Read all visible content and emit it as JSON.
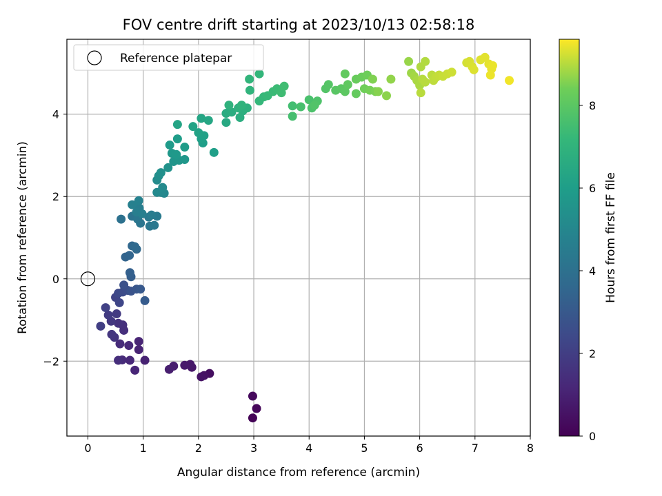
{
  "chart_data": {
    "type": "scatter",
    "title": "FOV centre drift starting at 2023/10/13 02:58:18",
    "xlabel": "Angular distance from reference (arcmin)",
    "ylabel": "Rotation from reference (arcmin)",
    "colorbar_label": "Hours from first FF file",
    "colormap": "viridis",
    "xlim": [
      -0.38,
      8.0
    ],
    "ylim": [
      -3.82,
      5.82
    ],
    "xticks": [
      0,
      1,
      2,
      3,
      4,
      5,
      6,
      7,
      8
    ],
    "xtick_labels": [
      "0",
      "1",
      "2",
      "3",
      "4",
      "5",
      "6",
      "7",
      "8"
    ],
    "yticks": [
      -2,
      0,
      2,
      4
    ],
    "ytick_labels": [
      "−2",
      "0",
      "2",
      "4"
    ],
    "colorbar_range": [
      0,
      9.6
    ],
    "colorbar_ticks": [
      0,
      2,
      4,
      6,
      8
    ],
    "colorbar_tick_labels": [
      "0",
      "2",
      "4",
      "6",
      "8"
    ],
    "grid": true,
    "legend": {
      "location": "top-left",
      "entries": [
        "Reference platepar"
      ]
    },
    "reference_point": {
      "x": 0,
      "y": 0
    },
    "points": [
      {
        "x": 2.98,
        "y": -3.38,
        "c": 0.05
      },
      {
        "x": 3.05,
        "y": -3.15,
        "c": 0.15
      },
      {
        "x": 2.98,
        "y": -2.85,
        "c": 0.25
      },
      {
        "x": 2.2,
        "y": -2.3,
        "c": 0.4
      },
      {
        "x": 2.1,
        "y": -2.35,
        "c": 0.5
      },
      {
        "x": 2.05,
        "y": -2.38,
        "c": 0.55
      },
      {
        "x": 1.88,
        "y": -2.15,
        "c": 0.65
      },
      {
        "x": 1.85,
        "y": -2.08,
        "c": 0.7
      },
      {
        "x": 1.75,
        "y": -2.1,
        "c": 0.75
      },
      {
        "x": 1.55,
        "y": -2.12,
        "c": 0.85
      },
      {
        "x": 1.47,
        "y": -2.2,
        "c": 0.9
      },
      {
        "x": 1.03,
        "y": -1.98,
        "c": 1.0
      },
      {
        "x": 0.92,
        "y": -1.72,
        "c": 1.05
      },
      {
        "x": 0.92,
        "y": -1.52,
        "c": 1.1
      },
      {
        "x": 0.85,
        "y": -2.22,
        "c": 1.15
      },
      {
        "x": 0.76,
        "y": -1.98,
        "c": 1.2
      },
      {
        "x": 0.74,
        "y": -1.62,
        "c": 1.25
      },
      {
        "x": 0.62,
        "y": -1.97,
        "c": 1.3
      },
      {
        "x": 0.58,
        "y": -1.58,
        "c": 1.35
      },
      {
        "x": 0.55,
        "y": -1.98,
        "c": 1.4
      },
      {
        "x": 0.65,
        "y": -1.25,
        "c": 1.45
      },
      {
        "x": 0.63,
        "y": -1.12,
        "c": 1.5
      },
      {
        "x": 0.55,
        "y": -1.08,
        "c": 1.55
      },
      {
        "x": 0.48,
        "y": -1.42,
        "c": 1.65
      },
      {
        "x": 0.43,
        "y": -1.35,
        "c": 1.7
      },
      {
        "x": 0.42,
        "y": -1.03,
        "c": 1.75
      },
      {
        "x": 0.52,
        "y": -0.85,
        "c": 1.85
      },
      {
        "x": 0.37,
        "y": -0.88,
        "c": 1.9
      },
      {
        "x": 0.23,
        "y": -1.15,
        "c": 2.0
      },
      {
        "x": 0.32,
        "y": -0.7,
        "c": 2.1
      },
      {
        "x": 0.5,
        "y": -0.45,
        "c": 2.2
      },
      {
        "x": 0.57,
        "y": -0.58,
        "c": 2.3
      },
      {
        "x": 0.55,
        "y": -0.35,
        "c": 2.4
      },
      {
        "x": 0.63,
        "y": -0.32,
        "c": 2.5
      },
      {
        "x": 0.72,
        "y": -0.28,
        "c": 2.6
      },
      {
        "x": 0.65,
        "y": -0.15,
        "c": 2.7
      },
      {
        "x": 0.78,
        "y": -0.3,
        "c": 2.8
      },
      {
        "x": 0.88,
        "y": -0.25,
        "c": 2.9
      },
      {
        "x": 0.95,
        "y": -0.25,
        "c": 3.0
      },
      {
        "x": 1.03,
        "y": -0.53,
        "c": 3.1
      },
      {
        "x": 0.78,
        "y": 0.05,
        "c": 3.2
      },
      {
        "x": 0.76,
        "y": 0.15,
        "c": 3.3
      },
      {
        "x": 0.68,
        "y": 0.53,
        "c": 3.45
      },
      {
        "x": 0.75,
        "y": 0.57,
        "c": 3.5
      },
      {
        "x": 0.8,
        "y": 0.8,
        "c": 3.6
      },
      {
        "x": 0.88,
        "y": 0.72,
        "c": 3.65
      },
      {
        "x": 0.85,
        "y": 0.78,
        "c": 3.7
      },
      {
        "x": 0.6,
        "y": 1.45,
        "c": 4.0
      },
      {
        "x": 0.8,
        "y": 1.52,
        "c": 4.1
      },
      {
        "x": 0.95,
        "y": 1.35,
        "c": 4.2
      },
      {
        "x": 0.9,
        "y": 1.45,
        "c": 4.25
      },
      {
        "x": 1.12,
        "y": 1.28,
        "c": 4.3
      },
      {
        "x": 1.2,
        "y": 1.3,
        "c": 4.35
      },
      {
        "x": 1.1,
        "y": 1.5,
        "c": 4.4
      },
      {
        "x": 1.25,
        "y": 1.52,
        "c": 4.45
      },
      {
        "x": 1.15,
        "y": 1.55,
        "c": 4.5
      },
      {
        "x": 0.93,
        "y": 1.72,
        "c": 4.55
      },
      {
        "x": 0.88,
        "y": 1.62,
        "c": 4.6
      },
      {
        "x": 0.98,
        "y": 1.58,
        "c": 4.65
      },
      {
        "x": 0.8,
        "y": 1.8,
        "c": 4.7
      },
      {
        "x": 0.92,
        "y": 1.9,
        "c": 4.75
      },
      {
        "x": 1.38,
        "y": 2.08,
        "c": 5.0
      },
      {
        "x": 1.32,
        "y": 2.1,
        "c": 5.05
      },
      {
        "x": 1.25,
        "y": 2.1,
        "c": 5.1
      },
      {
        "x": 1.35,
        "y": 2.22,
        "c": 5.15
      },
      {
        "x": 1.25,
        "y": 2.4,
        "c": 5.2
      },
      {
        "x": 1.28,
        "y": 2.5,
        "c": 5.3
      },
      {
        "x": 1.32,
        "y": 2.58,
        "c": 5.4
      },
      {
        "x": 1.45,
        "y": 2.7,
        "c": 5.5
      },
      {
        "x": 1.55,
        "y": 2.85,
        "c": 5.6
      },
      {
        "x": 1.65,
        "y": 2.88,
        "c": 5.65
      },
      {
        "x": 1.75,
        "y": 2.9,
        "c": 5.7
      },
      {
        "x": 1.52,
        "y": 3.05,
        "c": 5.75
      },
      {
        "x": 1.6,
        "y": 3.02,
        "c": 5.8
      },
      {
        "x": 1.48,
        "y": 3.25,
        "c": 5.85
      },
      {
        "x": 1.75,
        "y": 3.2,
        "c": 5.9
      },
      {
        "x": 1.62,
        "y": 3.4,
        "c": 5.95
      },
      {
        "x": 2.08,
        "y": 3.3,
        "c": 6.0
      },
      {
        "x": 2.28,
        "y": 3.07,
        "c": 6.05
      },
      {
        "x": 2.05,
        "y": 3.4,
        "c": 6.1
      },
      {
        "x": 2.1,
        "y": 3.48,
        "c": 6.15
      },
      {
        "x": 2.0,
        "y": 3.55,
        "c": 6.2
      },
      {
        "x": 1.9,
        "y": 3.7,
        "c": 6.25
      },
      {
        "x": 1.62,
        "y": 3.75,
        "c": 6.3
      },
      {
        "x": 2.05,
        "y": 3.9,
        "c": 6.35
      },
      {
        "x": 2.18,
        "y": 3.85,
        "c": 6.4
      },
      {
        "x": 2.5,
        "y": 3.8,
        "c": 6.5
      },
      {
        "x": 2.5,
        "y": 4.02,
        "c": 6.6
      },
      {
        "x": 2.6,
        "y": 4.05,
        "c": 6.65
      },
      {
        "x": 2.75,
        "y": 3.92,
        "c": 6.7
      },
      {
        "x": 2.8,
        "y": 4.08,
        "c": 6.75
      },
      {
        "x": 2.88,
        "y": 4.15,
        "c": 6.8
      },
      {
        "x": 2.72,
        "y": 4.15,
        "c": 6.85
      },
      {
        "x": 2.55,
        "y": 4.22,
        "c": 6.9
      },
      {
        "x": 2.78,
        "y": 4.22,
        "c": 6.95
      },
      {
        "x": 2.93,
        "y": 4.58,
        "c": 7.0
      },
      {
        "x": 2.92,
        "y": 4.85,
        "c": 7.05
      },
      {
        "x": 3.1,
        "y": 4.98,
        "c": 7.1
      },
      {
        "x": 3.1,
        "y": 4.32,
        "c": 7.15
      },
      {
        "x": 3.18,
        "y": 4.42,
        "c": 7.2
      },
      {
        "x": 3.25,
        "y": 4.45,
        "c": 7.25
      },
      {
        "x": 3.35,
        "y": 4.55,
        "c": 7.3
      },
      {
        "x": 3.42,
        "y": 4.62,
        "c": 7.35
      },
      {
        "x": 3.5,
        "y": 4.52,
        "c": 7.4
      },
      {
        "x": 3.55,
        "y": 4.68,
        "c": 7.45
      },
      {
        "x": 3.7,
        "y": 4.2,
        "c": 7.5
      },
      {
        "x": 3.7,
        "y": 3.95,
        "c": 7.55
      },
      {
        "x": 3.85,
        "y": 4.18,
        "c": 7.6
      },
      {
        "x": 4.0,
        "y": 4.35,
        "c": 7.65
      },
      {
        "x": 4.05,
        "y": 4.15,
        "c": 7.7
      },
      {
        "x": 4.15,
        "y": 4.32,
        "c": 7.75
      },
      {
        "x": 4.1,
        "y": 4.22,
        "c": 7.8
      },
      {
        "x": 4.3,
        "y": 4.62,
        "c": 7.85
      },
      {
        "x": 4.35,
        "y": 4.72,
        "c": 7.9
      },
      {
        "x": 4.48,
        "y": 4.58,
        "c": 7.95
      },
      {
        "x": 4.58,
        "y": 4.62,
        "c": 8.0
      },
      {
        "x": 4.65,
        "y": 4.55,
        "c": 8.05
      },
      {
        "x": 4.7,
        "y": 4.72,
        "c": 8.1
      },
      {
        "x": 4.65,
        "y": 4.98,
        "c": 8.15
      },
      {
        "x": 4.85,
        "y": 4.5,
        "c": 8.2
      },
      {
        "x": 4.85,
        "y": 4.85,
        "c": 8.25
      },
      {
        "x": 4.95,
        "y": 4.9,
        "c": 8.3
      },
      {
        "x": 5.05,
        "y": 4.95,
        "c": 8.35
      },
      {
        "x": 5.0,
        "y": 4.62,
        "c": 8.4
      },
      {
        "x": 5.1,
        "y": 4.58,
        "c": 8.45
      },
      {
        "x": 5.2,
        "y": 4.55,
        "c": 8.5
      },
      {
        "x": 5.15,
        "y": 4.85,
        "c": 8.55
      },
      {
        "x": 5.25,
        "y": 4.55,
        "c": 8.6
      },
      {
        "x": 5.4,
        "y": 4.45,
        "c": 8.65
      },
      {
        "x": 5.48,
        "y": 4.85,
        "c": 8.7
      },
      {
        "x": 5.8,
        "y": 5.28,
        "c": 8.75
      },
      {
        "x": 5.85,
        "y": 5.0,
        "c": 8.8
      },
      {
        "x": 5.9,
        "y": 4.92,
        "c": 8.85
      },
      {
        "x": 5.95,
        "y": 4.82,
        "c": 8.9
      },
      {
        "x": 6.0,
        "y": 4.7,
        "c": 8.92
      },
      {
        "x": 6.02,
        "y": 5.15,
        "c": 8.95
      },
      {
        "x": 6.1,
        "y": 5.28,
        "c": 8.97
      },
      {
        "x": 6.05,
        "y": 4.85,
        "c": 9.0
      },
      {
        "x": 6.1,
        "y": 4.78,
        "c": 9.02
      },
      {
        "x": 6.02,
        "y": 4.52,
        "c": 9.03
      },
      {
        "x": 6.22,
        "y": 4.95,
        "c": 9.05
      },
      {
        "x": 6.25,
        "y": 4.82,
        "c": 9.07
      },
      {
        "x": 6.3,
        "y": 4.9,
        "c": 9.1
      },
      {
        "x": 6.35,
        "y": 4.95,
        "c": 9.12
      },
      {
        "x": 6.42,
        "y": 4.92,
        "c": 9.15
      },
      {
        "x": 6.5,
        "y": 4.98,
        "c": 9.17
      },
      {
        "x": 6.58,
        "y": 5.02,
        "c": 9.2
      },
      {
        "x": 6.85,
        "y": 5.25,
        "c": 9.25
      },
      {
        "x": 6.9,
        "y": 5.28,
        "c": 9.28
      },
      {
        "x": 6.95,
        "y": 5.15,
        "c": 9.3
      },
      {
        "x": 6.98,
        "y": 5.08,
        "c": 9.32
      },
      {
        "x": 7.1,
        "y": 5.32,
        "c": 9.35
      },
      {
        "x": 7.18,
        "y": 5.38,
        "c": 9.37
      },
      {
        "x": 7.25,
        "y": 5.22,
        "c": 9.4
      },
      {
        "x": 7.3,
        "y": 5.1,
        "c": 9.42
      },
      {
        "x": 7.32,
        "y": 5.18,
        "c": 9.44
      },
      {
        "x": 7.28,
        "y": 4.95,
        "c": 9.46
      },
      {
        "x": 7.62,
        "y": 4.82,
        "c": 9.5
      }
    ]
  }
}
